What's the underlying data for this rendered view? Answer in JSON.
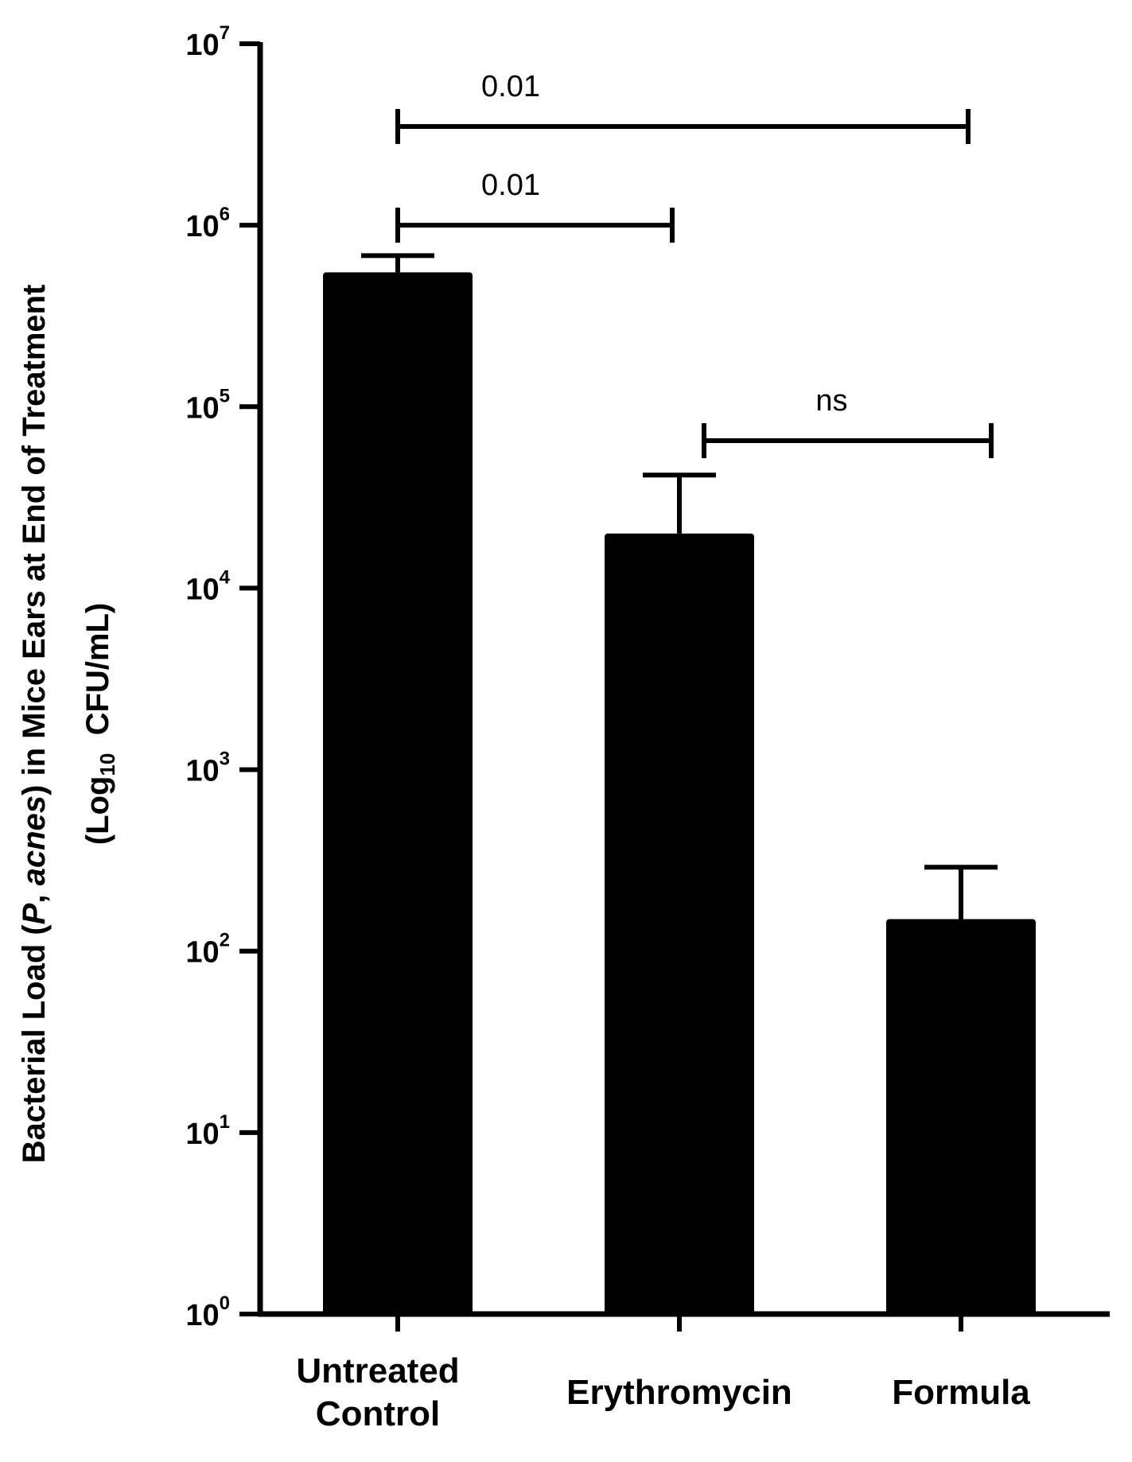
{
  "chart_data": {
    "type": "bar",
    "categories": [
      [
        "Untreated",
        "Control"
      ],
      [
        "Erythromycin"
      ],
      [
        "Formula"
      ]
    ],
    "values": [
      550000,
      20000,
      150
    ],
    "error_upper": [
      680000,
      42000,
      290
    ],
    "yscale": "log",
    "ylim": [
      1,
      10000000
    ],
    "yticks": [
      {
        "base": "10",
        "exp": "0"
      },
      {
        "base": "10",
        "exp": "1"
      },
      {
        "base": "10",
        "exp": "2"
      },
      {
        "base": "10",
        "exp": "3"
      },
      {
        "base": "10",
        "exp": "4"
      },
      {
        "base": "10",
        "exp": "5"
      },
      {
        "base": "10",
        "exp": "6"
      },
      {
        "base": "10",
        "exp": "7"
      }
    ],
    "ylabel": {
      "line1_a": "Bacterial Load (",
      "line1_italic_a": "P",
      "line1_b": ", ",
      "line1_italic_b": "acnes",
      "line1_c": ") in Mice Ears at End of Treatment",
      "line2_a": "(Log",
      "line2_sub": "10",
      "line2_b": "  CFU/mL)"
    },
    "bar_color": "#000000",
    "grid": false,
    "comparisons": [
      {
        "from": 0,
        "to": 2,
        "label": "0.01",
        "y": 3500000
      },
      {
        "from": 0,
        "to": 1,
        "label": "0.01",
        "y": 1000000
      },
      {
        "from": 1,
        "to": 2,
        "label": "ns",
        "y": 65000
      }
    ]
  }
}
